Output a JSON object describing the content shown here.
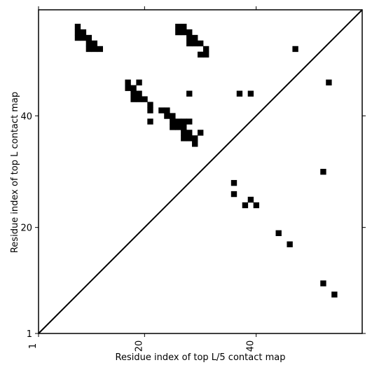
{
  "chart_data": {
    "type": "heatmap",
    "title": "",
    "xlabel": "Residue index of top L/5 contact map",
    "ylabel": "Residue index of top L contact map",
    "xlim": [
      1,
      59
    ],
    "ylim": [
      1,
      59
    ],
    "xticks": [
      1,
      20,
      40
    ],
    "yticks": [
      1,
      20,
      40
    ],
    "grid": false,
    "diagonal": true,
    "upper_contacts": [
      [
        8,
        56
      ],
      [
        8,
        55
      ],
      [
        8,
        54
      ],
      [
        9,
        55
      ],
      [
        9,
        54
      ],
      [
        10,
        54
      ],
      [
        10,
        53
      ],
      [
        10,
        52
      ],
      [
        11,
        53
      ],
      [
        11,
        52
      ],
      [
        12,
        52
      ],
      [
        26,
        56
      ],
      [
        26,
        55
      ],
      [
        27,
        56
      ],
      [
        27,
        55
      ],
      [
        28,
        55
      ],
      [
        28,
        54
      ],
      [
        28,
        53
      ],
      [
        29,
        54
      ],
      [
        29,
        53
      ],
      [
        30,
        53
      ],
      [
        30,
        51
      ],
      [
        31,
        52
      ],
      [
        31,
        51
      ],
      [
        17,
        46
      ],
      [
        17,
        45
      ],
      [
        18,
        45
      ],
      [
        18,
        44
      ],
      [
        18,
        43
      ],
      [
        19,
        46
      ],
      [
        19,
        44
      ],
      [
        19,
        43
      ],
      [
        20,
        43
      ],
      [
        21,
        42
      ],
      [
        21,
        41
      ],
      [
        23,
        41
      ],
      [
        24,
        41
      ],
      [
        24,
        40
      ],
      [
        25,
        40
      ],
      [
        25,
        39
      ],
      [
        25,
        38
      ],
      [
        26,
        39
      ],
      [
        26,
        38
      ],
      [
        27,
        39
      ],
      [
        27,
        38
      ],
      [
        27,
        37
      ],
      [
        27,
        36
      ],
      [
        28,
        39
      ],
      [
        28,
        37
      ],
      [
        28,
        36
      ],
      [
        29,
        36
      ],
      [
        29,
        35
      ],
      [
        30,
        37
      ],
      [
        21,
        39
      ],
      [
        28,
        44
      ]
    ],
    "lower_contacts": [
      [
        47,
        52
      ],
      [
        53,
        46
      ],
      [
        37,
        44
      ],
      [
        39,
        44
      ],
      [
        52,
        30
      ],
      [
        36,
        28
      ],
      [
        36,
        26
      ],
      [
        38,
        24
      ],
      [
        39,
        25
      ],
      [
        40,
        24
      ],
      [
        44,
        19
      ],
      [
        46,
        17
      ],
      [
        52,
        10
      ],
      [
        54,
        8
      ]
    ],
    "colors": {
      "contact": "#000000",
      "frame": "#000000",
      "background": "#ffffff"
    }
  }
}
